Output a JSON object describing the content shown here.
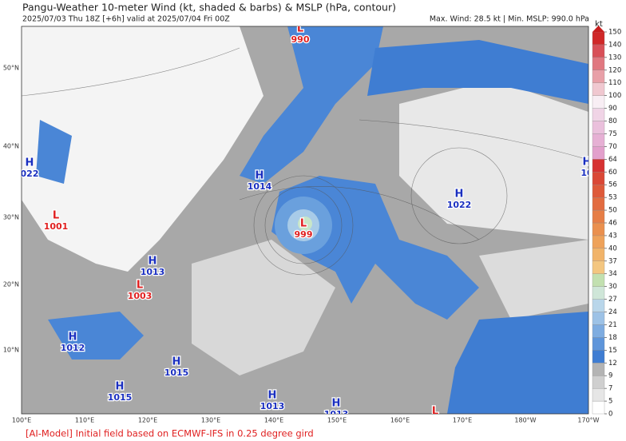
{
  "header": {
    "title": "Pangu-Weather 10-meter Wind (kt, shaded & barbs) & MSLP (hPa, contour)",
    "subtitle": "2025/07/03 Thu 18Z [+6h] valid at 2025/07/04 Fri 00Z",
    "stats": "Max. Wind: 28.5 kt | Min. MSLP: 990.0 hPa"
  },
  "map": {
    "lon_labels": [
      "100°E",
      "110°E",
      "120°E",
      "130°E",
      "140°E",
      "150°E",
      "160°E",
      "170°E",
      "180°W",
      "170°W"
    ],
    "lat_labels": [
      "50°N",
      "40°N",
      "30°N",
      "20°N",
      "10°N"
    ],
    "centers": [
      {
        "type": "L",
        "value": "990"
      },
      {
        "type": "L",
        "value": "999"
      },
      {
        "type": "L",
        "value": "1001"
      },
      {
        "type": "L",
        "value": "1003"
      },
      {
        "type": "H",
        "value": "1014"
      },
      {
        "type": "H",
        "value": "1022"
      },
      {
        "type": "H",
        "value": "1013"
      },
      {
        "type": "H",
        "value": "1012"
      },
      {
        "type": "H",
        "value": "1015"
      },
      {
        "type": "H",
        "value": "1015"
      },
      {
        "type": "H",
        "value": "1013"
      },
      {
        "type": "H",
        "value": "022"
      },
      {
        "type": "H",
        "value": "10"
      },
      {
        "type": "H",
        "value": "1013"
      },
      {
        "type": "L",
        "value": null
      }
    ]
  },
  "colorbar": {
    "unit": "kt",
    "ticks": [
      0,
      5,
      7,
      9,
      12,
      15,
      18,
      21,
      24,
      27,
      30,
      34,
      37,
      40,
      43,
      46,
      50,
      53,
      56,
      60,
      64,
      70,
      75,
      80,
      90,
      100,
      110,
      120,
      130,
      140,
      150
    ],
    "colors": [
      "#ffffff",
      "#e6e6e6",
      "#cfcfcf",
      "#b4b4b4",
      "#3f7dd2",
      "#5e95da",
      "#7eace0",
      "#9dc2e6",
      "#b9d6ea",
      "#cfe6d8",
      "#c2e0b0",
      "#f3c680",
      "#f1b46a",
      "#eea25a",
      "#ea904e",
      "#e67e46",
      "#e26c40",
      "#de5a3a",
      "#da4836",
      "#d63232",
      "#e2a0cc",
      "#e6b0d4",
      "#eac0dc",
      "#f0d4e6",
      "#f8eef4",
      "#f0c8d0",
      "#e8a0a8",
      "#e07880",
      "#d85058",
      "#d02828"
    ],
    "top_color": "#c81e1e"
  },
  "footer": {
    "note": "[AI-Model] Initial field based on ECMWF-IFS in 0.25 degree gird"
  }
}
